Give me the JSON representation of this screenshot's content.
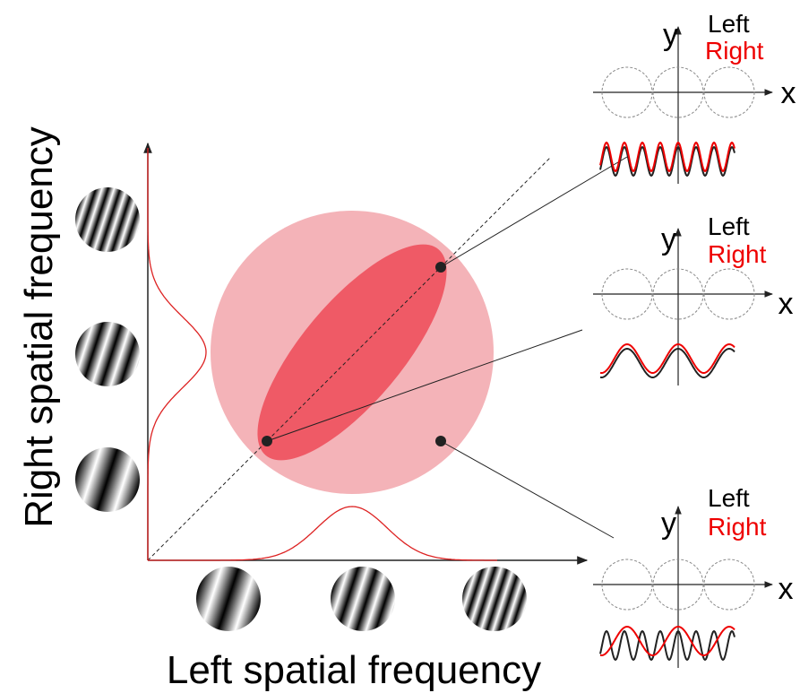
{
  "axes": {
    "x_label": "Left spatial frequency",
    "y_label": "Right spatial frequency"
  },
  "insets": [
    {
      "y_axis": "y",
      "x_axis": "x",
      "legend": [
        "Left",
        "Right"
      ]
    },
    {
      "y_axis": "y",
      "x_axis": "x",
      "legend": [
        "Left",
        "Right"
      ]
    },
    {
      "y_axis": "y",
      "x_axis": "x",
      "legend": [
        "Left",
        "Right"
      ]
    }
  ]
}
